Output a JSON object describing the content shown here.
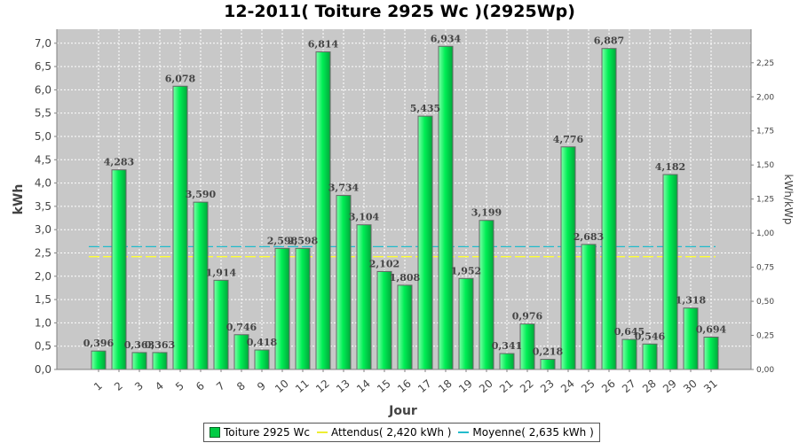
{
  "chart_data": {
    "type": "bar",
    "title": "12-2011( Toiture 2925 Wc )(2925Wp)",
    "xlabel": "Jour",
    "ylabel": "kWh",
    "ylabel_right": "kWh/kWp",
    "ylim": [
      0,
      7.3
    ],
    "ylim_right": [
      0,
      2.4957
    ],
    "yticks": [
      "0,0",
      "0,5",
      "1,0",
      "1,5",
      "2,0",
      "2,5",
      "3,0",
      "3,5",
      "4,0",
      "4,5",
      "5,0",
      "5,5",
      "6,0",
      "6,5",
      "7,0"
    ],
    "yticks_right": [
      "0,00",
      "0,25",
      "0,50",
      "0,75",
      "1,00",
      "1,25",
      "1,50",
      "1,75",
      "2,00",
      "2,25"
    ],
    "categories": [
      "1",
      "2",
      "3",
      "4",
      "5",
      "6",
      "7",
      "8",
      "9",
      "10",
      "11",
      "12",
      "13",
      "14",
      "15",
      "16",
      "17",
      "18",
      "19",
      "20",
      "21",
      "22",
      "23",
      "24",
      "25",
      "26",
      "27",
      "28",
      "29",
      "30",
      "31"
    ],
    "series": [
      {
        "name": "Toiture 2925 Wc",
        "values": [
          0.396,
          4.283,
          0.363,
          0.363,
          6.078,
          3.59,
          1.914,
          0.746,
          0.418,
          2.598,
          2.598,
          6.814,
          3.734,
          3.104,
          2.102,
          1.808,
          5.435,
          6.934,
          1.952,
          3.199,
          0.341,
          0.976,
          0.218,
          4.776,
          2.683,
          6.887,
          0.645,
          0.546,
          4.182,
          1.318,
          0.694
        ],
        "labels": [
          "0,396",
          "4,283",
          "0,363",
          "0,363",
          "6,078",
          "3,590",
          "1,914",
          "0,746",
          "0,418",
          "2,598",
          "2,598",
          "6,814",
          "3,734",
          "3,104",
          "2,102",
          "1,808",
          "5,435",
          "6,934",
          "1,952",
          "3,199",
          "0,341",
          "0,976",
          "0,218",
          "4,776",
          "2,683",
          "6,887",
          "0,645",
          "0,546",
          "4,182",
          "1,318",
          "0,694"
        ],
        "color": "#00dd55"
      }
    ],
    "reference_lines": [
      {
        "name": "Attendus( 2,420 kWh )",
        "value": 2.42,
        "color": "#ffff33"
      },
      {
        "name": "Moyenne( 2,635 kWh )",
        "value": 2.635,
        "color": "#22bbcc"
      }
    ],
    "grid": true,
    "legend_position": "bottom"
  }
}
